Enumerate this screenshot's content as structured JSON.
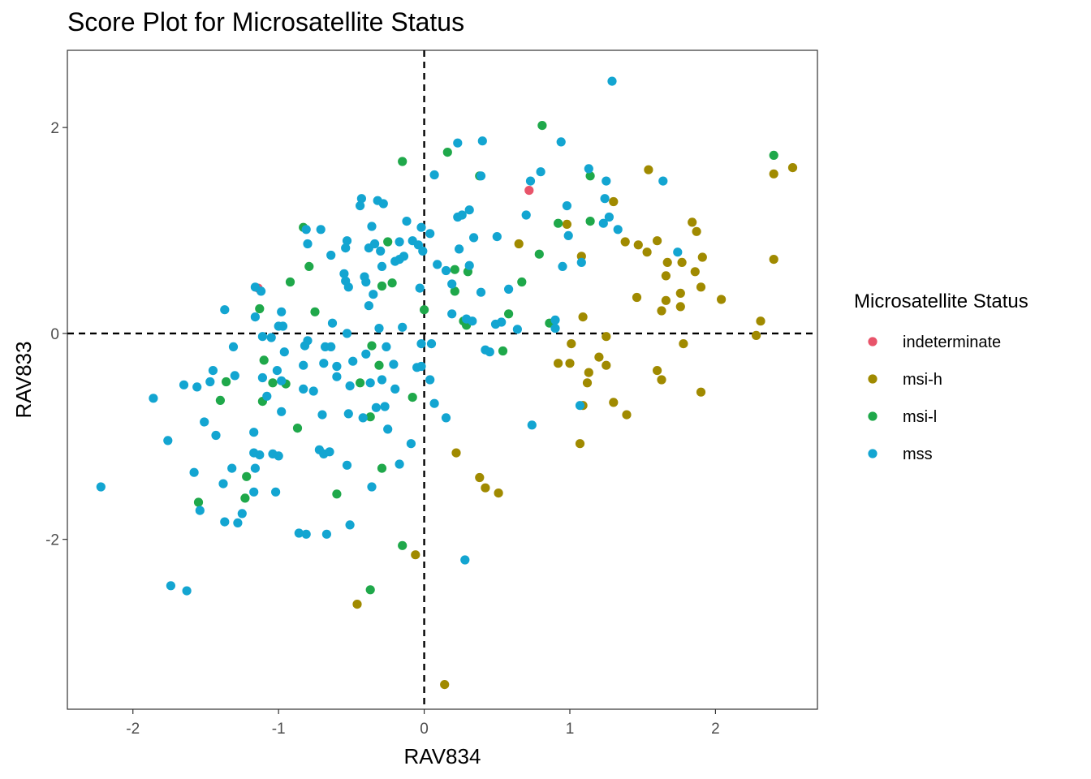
{
  "chart_data": {
    "type": "scatter",
    "title": "Score Plot for Microsatellite Status",
    "xlabel": "RAV834",
    "ylabel": "RAV833",
    "xlim": [
      -2.45,
      2.7
    ],
    "ylim": [
      -3.65,
      2.75
    ],
    "xticks": [
      -2,
      -1,
      0,
      1,
      2
    ],
    "yticks": [
      -2,
      0,
      2
    ],
    "xtick_labels": [
      "-2",
      "-1",
      "0",
      "1",
      "2"
    ],
    "ytick_labels": [
      "-2",
      "0",
      "2"
    ],
    "reference_lines": [
      {
        "axis": "x",
        "value": 0,
        "style": "dashed"
      },
      {
        "axis": "y",
        "value": 0,
        "style": "dashed"
      }
    ],
    "grid": false,
    "legend": {
      "title": "Microsatellite Status",
      "position": "right"
    },
    "series": [
      {
        "name": "indeterminate",
        "color": "#E8546A",
        "points": [
          [
            -1.14,
            0.44
          ],
          [
            0.72,
            1.39
          ]
        ]
      },
      {
        "name": "msi-h",
        "color": "#A08A00",
        "points": [
          [
            0.65,
            0.87
          ],
          [
            0.98,
            1.06
          ],
          [
            1.08,
            0.75
          ],
          [
            1.09,
            0.16
          ],
          [
            1.3,
            1.28
          ],
          [
            1.38,
            0.89
          ],
          [
            1.47,
            0.86
          ],
          [
            1.53,
            0.79
          ],
          [
            1.6,
            0.9
          ],
          [
            1.66,
            0.56
          ],
          [
            1.67,
            0.69
          ],
          [
            1.77,
            0.69
          ],
          [
            1.84,
            1.08
          ],
          [
            1.87,
            0.99
          ],
          [
            1.91,
            0.74
          ],
          [
            1.86,
            0.6
          ],
          [
            1.9,
            0.45
          ],
          [
            1.76,
            0.39
          ],
          [
            1.76,
            0.26
          ],
          [
            1.63,
            0.22
          ],
          [
            1.66,
            0.32
          ],
          [
            1.46,
            0.35
          ],
          [
            2.04,
            0.33
          ],
          [
            1.54,
            1.59
          ],
          [
            2.4,
            1.55
          ],
          [
            2.53,
            1.61
          ],
          [
            2.4,
            0.72
          ],
          [
            2.31,
            0.12
          ],
          [
            2.28,
            -0.02
          ],
          [
            1.01,
            -0.1
          ],
          [
            1.0,
            -0.29
          ],
          [
            0.92,
            -0.29
          ],
          [
            1.2,
            -0.23
          ],
          [
            1.25,
            -0.03
          ],
          [
            1.25,
            -0.31
          ],
          [
            1.13,
            -0.38
          ],
          [
            1.12,
            -0.48
          ],
          [
            1.09,
            -0.7
          ],
          [
            1.3,
            -0.67
          ],
          [
            1.39,
            -0.79
          ],
          [
            1.6,
            -0.36
          ],
          [
            1.63,
            -0.45
          ],
          [
            1.78,
            -0.1
          ],
          [
            1.9,
            -0.57
          ],
          [
            1.07,
            -1.07
          ],
          [
            0.22,
            -1.16
          ],
          [
            0.38,
            -1.4
          ],
          [
            0.42,
            -1.5
          ],
          [
            0.51,
            -1.55
          ],
          [
            -0.06,
            -2.15
          ],
          [
            -0.46,
            -2.63
          ],
          [
            0.14,
            -3.41
          ]
        ]
      },
      {
        "name": "msi-l",
        "color": "#1FA84A",
        "points": [
          [
            0.81,
            2.02
          ],
          [
            -0.15,
            1.67
          ],
          [
            0.16,
            1.76
          ],
          [
            0.38,
            1.53
          ],
          [
            1.14,
            1.53
          ],
          [
            0.92,
            1.07
          ],
          [
            1.14,
            1.09
          ],
          [
            -0.83,
            1.03
          ],
          [
            -0.25,
            0.89
          ],
          [
            -0.79,
            0.65
          ],
          [
            -0.92,
            0.5
          ],
          [
            -0.29,
            0.46
          ],
          [
            -0.22,
            0.49
          ],
          [
            0.21,
            0.41
          ],
          [
            0.3,
            0.6
          ],
          [
            0.21,
            0.62
          ],
          [
            0.67,
            0.5
          ],
          [
            0.79,
            0.77
          ],
          [
            -1.13,
            0.24
          ],
          [
            -0.75,
            0.21
          ],
          [
            0.0,
            0.23
          ],
          [
            0.27,
            0.12
          ],
          [
            0.29,
            0.08
          ],
          [
            0.58,
            0.19
          ],
          [
            0.86,
            0.1
          ],
          [
            -1.1,
            -0.26
          ],
          [
            -1.36,
            -0.47
          ],
          [
            -1.04,
            -0.48
          ],
          [
            -0.95,
            -0.49
          ],
          [
            -0.44,
            -0.48
          ],
          [
            -0.36,
            -0.12
          ],
          [
            -0.31,
            -0.31
          ],
          [
            0.54,
            -0.17
          ],
          [
            -1.11,
            -0.66
          ],
          [
            -1.4,
            -0.65
          ],
          [
            -0.87,
            -0.92
          ],
          [
            -0.37,
            -0.81
          ],
          [
            -0.08,
            -0.62
          ],
          [
            -1.22,
            -1.39
          ],
          [
            -1.23,
            -1.6
          ],
          [
            -1.55,
            -1.64
          ],
          [
            -0.6,
            -1.56
          ],
          [
            -0.29,
            -1.31
          ],
          [
            -0.15,
            -2.06
          ],
          [
            -0.37,
            -2.49
          ],
          [
            2.4,
            1.73
          ]
        ]
      },
      {
        "name": "mss",
        "color": "#13A5D1",
        "points": [
          [
            1.29,
            2.45
          ],
          [
            0.4,
            1.87
          ],
          [
            0.23,
            1.85
          ],
          [
            0.94,
            1.86
          ],
          [
            0.8,
            1.57
          ],
          [
            0.73,
            1.48
          ],
          [
            0.39,
            1.53
          ],
          [
            0.07,
            1.54
          ],
          [
            1.13,
            1.6
          ],
          [
            1.25,
            1.48
          ],
          [
            1.64,
            1.48
          ],
          [
            -0.43,
            1.31
          ],
          [
            -0.32,
            1.29
          ],
          [
            -0.28,
            1.26
          ],
          [
            -0.44,
            1.24
          ],
          [
            0.98,
            1.24
          ],
          [
            1.24,
            1.31
          ],
          [
            0.31,
            1.2
          ],
          [
            0.7,
            1.15
          ],
          [
            0.23,
            1.13
          ],
          [
            0.26,
            1.15
          ],
          [
            1.27,
            1.13
          ],
          [
            -0.36,
            1.04
          ],
          [
            -0.12,
            1.09
          ],
          [
            -0.71,
            1.01
          ],
          [
            -0.81,
            1.01
          ],
          [
            -0.02,
            1.03
          ],
          [
            1.23,
            1.07
          ],
          [
            1.33,
            1.01
          ],
          [
            0.04,
            0.97
          ],
          [
            0.5,
            0.94
          ],
          [
            0.34,
            0.93
          ],
          [
            0.99,
            0.95
          ],
          [
            -0.53,
            0.9
          ],
          [
            -0.34,
            0.87
          ],
          [
            -0.17,
            0.89
          ],
          [
            -0.08,
            0.9
          ],
          [
            -0.54,
            0.83
          ],
          [
            -0.38,
            0.83
          ],
          [
            -0.3,
            0.8
          ],
          [
            -0.8,
            0.87
          ],
          [
            -0.04,
            0.86
          ],
          [
            -0.01,
            0.8
          ],
          [
            0.24,
            0.82
          ],
          [
            -0.64,
            0.76
          ],
          [
            -0.14,
            0.75
          ],
          [
            -0.2,
            0.7
          ],
          [
            -0.17,
            0.72
          ],
          [
            -0.41,
            0.55
          ],
          [
            -0.55,
            0.58
          ],
          [
            -0.4,
            0.5
          ],
          [
            -0.29,
            0.65
          ],
          [
            0.09,
            0.67
          ],
          [
            0.15,
            0.61
          ],
          [
            0.31,
            0.66
          ],
          [
            1.08,
            0.69
          ],
          [
            0.95,
            0.65
          ],
          [
            1.74,
            0.79
          ],
          [
            -0.35,
            0.38
          ],
          [
            -0.52,
            0.45
          ],
          [
            -0.54,
            0.51
          ],
          [
            -1.16,
            0.45
          ],
          [
            -1.12,
            0.41
          ],
          [
            -0.38,
            0.27
          ],
          [
            -0.03,
            0.44
          ],
          [
            0.19,
            0.48
          ],
          [
            0.39,
            0.4
          ],
          [
            0.58,
            0.43
          ],
          [
            -1.16,
            0.16
          ],
          [
            -0.98,
            0.21
          ],
          [
            0.19,
            0.19
          ],
          [
            0.29,
            0.14
          ],
          [
            0.33,
            0.12
          ],
          [
            0.49,
            0.09
          ],
          [
            0.53,
            0.11
          ],
          [
            0.9,
            0.13
          ],
          [
            -1.37,
            0.23
          ],
          [
            -1.0,
            0.07
          ],
          [
            -0.97,
            0.07
          ],
          [
            -0.31,
            0.05
          ],
          [
            -0.15,
            0.06
          ],
          [
            -0.63,
            0.1
          ],
          [
            0.64,
            0.04
          ],
          [
            0.9,
            0.05
          ],
          [
            -1.11,
            -0.03
          ],
          [
            -1.05,
            -0.04
          ],
          [
            -0.8,
            -0.07
          ],
          [
            -0.53,
            0.0
          ],
          [
            -0.02,
            -0.1
          ],
          [
            0.05,
            -0.1
          ],
          [
            -1.31,
            -0.13
          ],
          [
            -0.96,
            -0.18
          ],
          [
            -0.82,
            -0.12
          ],
          [
            -0.68,
            -0.13
          ],
          [
            -0.64,
            -0.13
          ],
          [
            -0.4,
            -0.2
          ],
          [
            -0.26,
            -0.13
          ],
          [
            0.42,
            -0.16
          ],
          [
            0.45,
            -0.18
          ],
          [
            -1.45,
            -0.36
          ],
          [
            -1.47,
            -0.47
          ],
          [
            -1.3,
            -0.41
          ],
          [
            -1.11,
            -0.43
          ],
          [
            -1.01,
            -0.36
          ],
          [
            -0.83,
            -0.31
          ],
          [
            -0.69,
            -0.29
          ],
          [
            -0.6,
            -0.32
          ],
          [
            -0.49,
            -0.27
          ],
          [
            -0.21,
            -0.3
          ],
          [
            -0.02,
            -0.32
          ],
          [
            0.04,
            -0.45
          ],
          [
            -1.65,
            -0.5
          ],
          [
            -1.56,
            -0.52
          ],
          [
            -1.08,
            -0.61
          ],
          [
            -0.98,
            -0.46
          ],
          [
            -0.83,
            -0.54
          ],
          [
            -0.76,
            -0.56
          ],
          [
            -0.6,
            -0.42
          ],
          [
            -0.51,
            -0.51
          ],
          [
            -0.37,
            -0.48
          ],
          [
            -0.29,
            -0.45
          ],
          [
            -0.2,
            -0.54
          ],
          [
            -0.05,
            -0.33
          ],
          [
            -1.86,
            -0.63
          ],
          [
            -1.51,
            -0.86
          ],
          [
            -1.43,
            -0.99
          ],
          [
            -1.17,
            -0.96
          ],
          [
            -1.13,
            -1.18
          ],
          [
            -1.04,
            -1.17
          ],
          [
            -0.98,
            -0.76
          ],
          [
            -0.7,
            -0.79
          ],
          [
            -0.52,
            -0.78
          ],
          [
            -0.42,
            -0.82
          ],
          [
            -0.33,
            -0.72
          ],
          [
            -0.27,
            -0.71
          ],
          [
            -0.25,
            -0.93
          ],
          [
            0.07,
            -0.68
          ],
          [
            0.15,
            -0.82
          ],
          [
            -1.76,
            -1.04
          ],
          [
            -1.58,
            -1.35
          ],
          [
            -1.32,
            -1.31
          ],
          [
            -1.16,
            -1.31
          ],
          [
            -1.17,
            -1.16
          ],
          [
            -1.0,
            -1.19
          ],
          [
            -0.72,
            -1.13
          ],
          [
            -0.69,
            -1.17
          ],
          [
            -0.65,
            -1.15
          ],
          [
            -0.53,
            -1.28
          ],
          [
            -0.17,
            -1.27
          ],
          [
            -0.09,
            -1.07
          ],
          [
            -2.22,
            -1.49
          ],
          [
            -1.38,
            -1.46
          ],
          [
            -1.17,
            -1.54
          ],
          [
            -1.02,
            -1.54
          ],
          [
            -0.36,
            -1.49
          ],
          [
            -1.54,
            -1.72
          ],
          [
            -1.37,
            -1.83
          ],
          [
            -1.28,
            -1.84
          ],
          [
            -1.25,
            -1.75
          ],
          [
            -0.86,
            -1.94
          ],
          [
            -0.81,
            -1.95
          ],
          [
            -0.67,
            -1.95
          ],
          [
            -0.51,
            -1.86
          ],
          [
            -1.74,
            -2.45
          ],
          [
            -1.63,
            -2.5
          ],
          [
            0.28,
            -2.2
          ],
          [
            0.74,
            -0.89
          ],
          [
            1.07,
            -0.7
          ]
        ]
      }
    ]
  }
}
